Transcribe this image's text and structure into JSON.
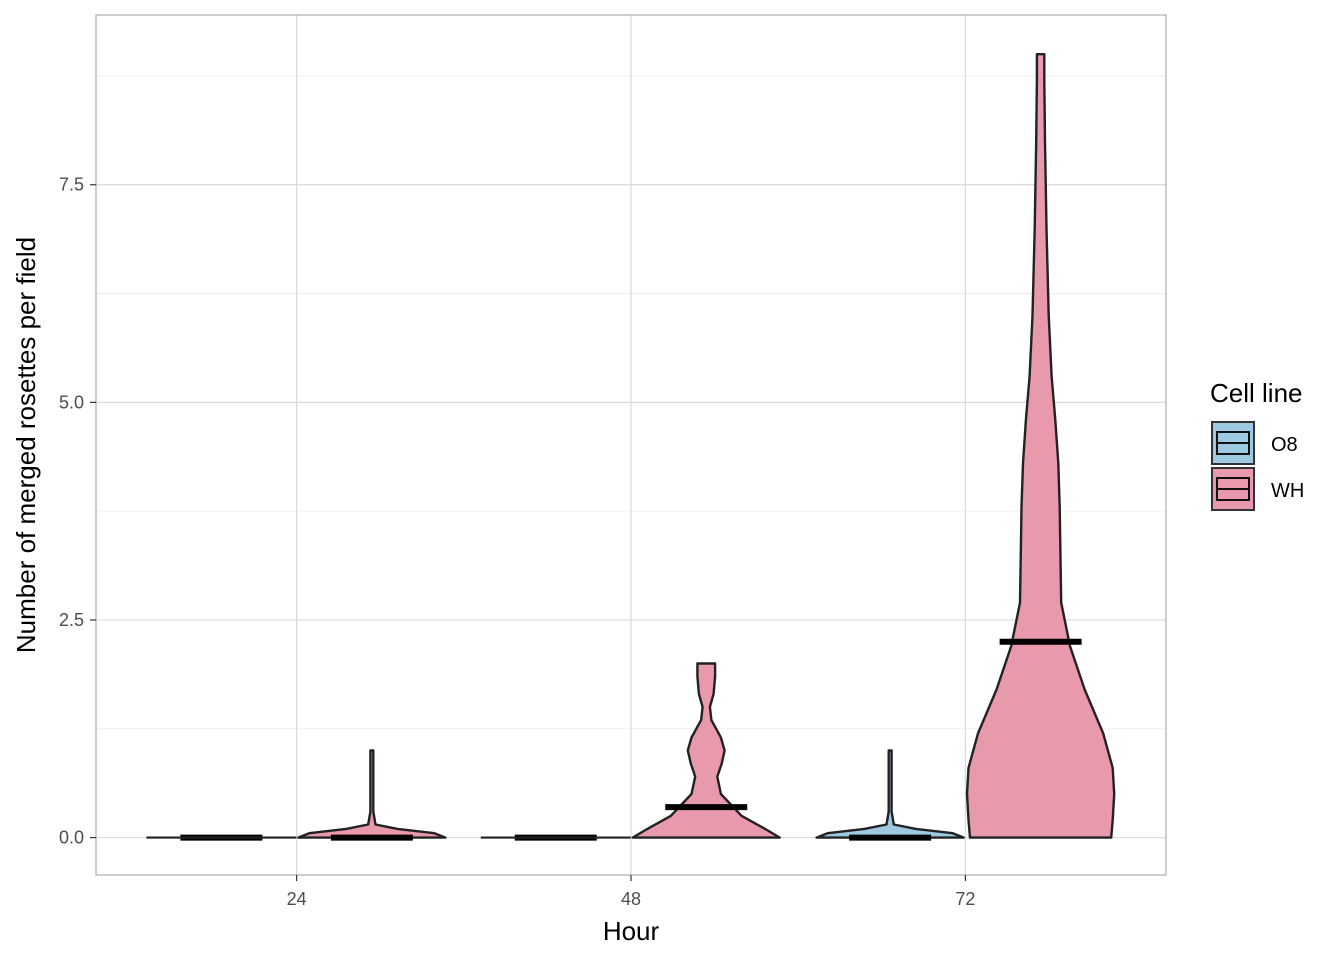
{
  "chart_data": {
    "type": "violin",
    "xlabel": "Hour",
    "ylabel": "Number of merged rosettes per field",
    "categories": [
      "24",
      "48",
      "72"
    ],
    "y_ticks": [
      "0.0",
      "2.5",
      "5.0",
      "7.5"
    ],
    "ylim": [
      -0.43,
      9.45
    ],
    "grid": true,
    "legend": {
      "title": "Cell line",
      "position": "right",
      "items": [
        {
          "name": "O8",
          "color": "#9ecae1"
        },
        {
          "name": "WH",
          "color": "#e899ab"
        }
      ]
    },
    "series": [
      {
        "name": "O8",
        "color": "#9ecae1",
        "violins": [
          {
            "category": "24",
            "max": 0.0,
            "median": 0.0,
            "max_halfwidth": 0.0,
            "density": [
              [
                0,
                1
              ],
              [
                0,
                1
              ]
            ]
          },
          {
            "category": "48",
            "max": 0.0,
            "median": 0.0,
            "max_halfwidth": 0.0,
            "density": [
              [
                0,
                1
              ],
              [
                0,
                1
              ]
            ]
          },
          {
            "category": "72",
            "max": 1.0,
            "median": 0.0,
            "max_halfwidth": 0.22,
            "density": [
              [
                0,
                1
              ],
              [
                0.05,
                0.85
              ],
              [
                0.1,
                0.35
              ],
              [
                0.15,
                0.05
              ],
              [
                0.3,
                0.02
              ],
              [
                0.6,
                0.02
              ],
              [
                1.0,
                0.02
              ]
            ]
          }
        ]
      },
      {
        "name": "WH",
        "color": "#e899ab",
        "violins": [
          {
            "category": "24",
            "max": 1.0,
            "median": 0.0,
            "max_halfwidth": 0.22,
            "density": [
              [
                0,
                1
              ],
              [
                0.05,
                0.85
              ],
              [
                0.1,
                0.35
              ],
              [
                0.15,
                0.05
              ],
              [
                0.3,
                0.02
              ],
              [
                0.6,
                0.02
              ],
              [
                1.0,
                0.02
              ]
            ]
          },
          {
            "category": "48",
            "max": 2.0,
            "median": 0.35,
            "max_halfwidth": 0.22,
            "density": [
              [
                0,
                1
              ],
              [
                0.1,
                0.8
              ],
              [
                0.25,
                0.48
              ],
              [
                0.5,
                0.2
              ],
              [
                0.7,
                0.15
              ],
              [
                0.85,
                0.21
              ],
              [
                1.0,
                0.25
              ],
              [
                1.15,
                0.2
              ],
              [
                1.35,
                0.07
              ],
              [
                1.5,
                0.05
              ],
              [
                1.65,
                0.1
              ],
              [
                1.85,
                0.12
              ],
              [
                2.0,
                0.12
              ]
            ]
          },
          {
            "category": "72",
            "max": 9.0,
            "median": 2.25,
            "max_halfwidth": 0.22,
            "density": [
              [
                0,
                0.96
              ],
              [
                0.2,
                0.98
              ],
              [
                0.5,
                1.0
              ],
              [
                0.8,
                0.98
              ],
              [
                1.2,
                0.85
              ],
              [
                1.7,
                0.6
              ],
              [
                2.2,
                0.4
              ],
              [
                2.7,
                0.28
              ],
              [
                3.2,
                0.27
              ],
              [
                3.8,
                0.26
              ],
              [
                4.3,
                0.24
              ],
              [
                4.8,
                0.2
              ],
              [
                5.3,
                0.15
              ],
              [
                6.0,
                0.11
              ],
              [
                7.0,
                0.08
              ],
              [
                8.0,
                0.06
              ],
              [
                8.7,
                0.05
              ],
              [
                9.0,
                0.05
              ]
            ]
          }
        ]
      }
    ]
  }
}
